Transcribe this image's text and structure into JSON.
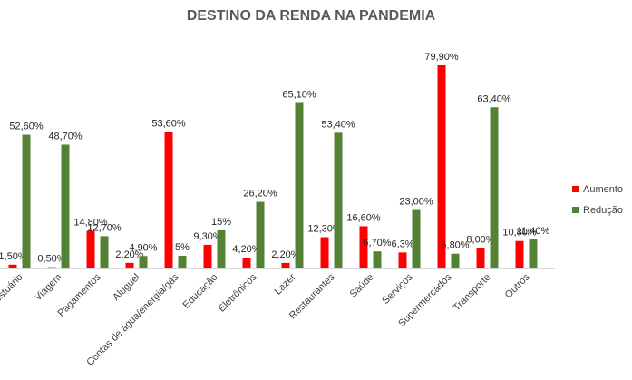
{
  "chart_data": {
    "type": "bar",
    "title": "DESTINO DA RENDA NA PANDEMIA",
    "categories": [
      "Vestuário",
      "Viagem",
      "Pagamentos",
      "Aluguel",
      "Contas de água/energia/gás",
      "Educação",
      "Eletrônicos",
      "Lazer",
      "Restaurantes",
      "Saúde",
      "Serviços",
      "Supermercados",
      "Transporte",
      "Outros"
    ],
    "series": [
      {
        "name": "Aumento",
        "color": "#ff0000",
        "values": [
          1.5,
          0.5,
          14.8,
          2.2,
          53.6,
          9.3,
          4.2,
          2.2,
          12.3,
          16.6,
          6.3,
          79.9,
          8.0,
          10.8
        ],
        "labels": [
          "1,50%",
          "0,50%",
          "14,80%",
          "2,20%",
          "53,60%",
          "9,30%",
          "4,20%",
          "2,20%",
          "12,30%",
          "16,60%",
          "6,3%",
          "79,90%",
          "8,00%",
          "10,80%"
        ]
      },
      {
        "name": "Redução",
        "color": "#548235",
        "values": [
          52.6,
          48.7,
          12.7,
          4.9,
          5,
          15,
          26.2,
          65.1,
          53.4,
          6.7,
          23.0,
          5.8,
          63.4,
          11.4
        ],
        "labels": [
          "52,60%",
          "48,70%",
          "12,70%",
          "4,90%",
          "5%",
          "15%",
          "26,20%",
          "65,10%",
          "53,40%",
          "6,70%",
          "23,00%",
          "5,80%",
          "63,40%",
          "11,40%"
        ]
      }
    ],
    "ylim": [
      0,
      85
    ],
    "grid": false,
    "legend_position": "right"
  }
}
